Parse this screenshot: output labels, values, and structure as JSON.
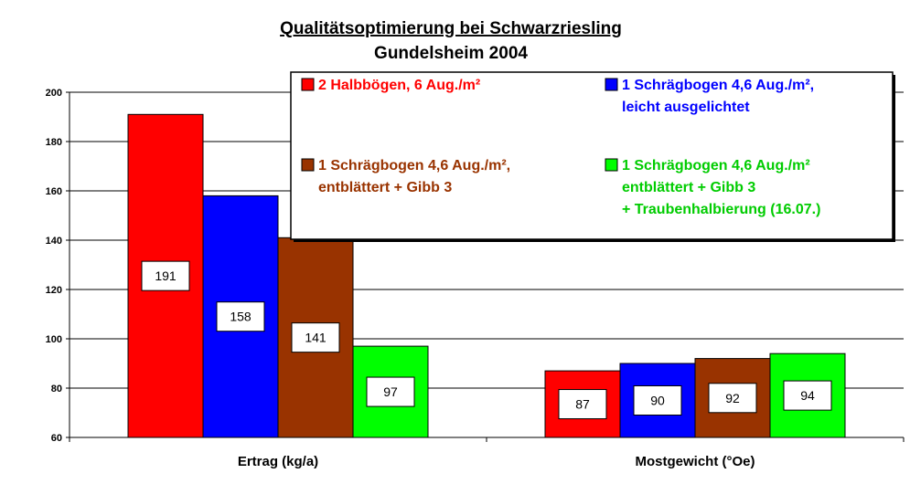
{
  "chart_data": {
    "type": "bar",
    "title": "Qualitätsoptimierung bei Schwarzriesling",
    "subtitle": "Gundelsheim 2004",
    "categories": [
      "Ertrag (kg/a)",
      "Mostgewicht (°Oe)"
    ],
    "ylim": [
      60,
      200
    ],
    "yticks": [
      60,
      80,
      100,
      120,
      140,
      160,
      180,
      200
    ],
    "grid": true,
    "legend_position": "top-right",
    "series": [
      {
        "name": "2 Halbbögen, 6 Aug./m²",
        "legend_lines": [
          "2 Halbbögen, 6 Aug./m²"
        ],
        "color": "#ff0000",
        "values": [
          191,
          87
        ]
      },
      {
        "name": "1 Schrägbogen 4,6 Aug./m², leicht ausgelichtet",
        "legend_lines": [
          "1 Schrägbogen 4,6 Aug./m²,",
          "leicht ausgelichtet"
        ],
        "color": "#0000ff",
        "values": [
          158,
          90
        ]
      },
      {
        "name": "1 Schrägbogen 4,6 Aug./m², entblättert + Gibb 3",
        "legend_lines": [
          "1 Schrägbogen 4,6 Aug./m²,",
          "entblättert + Gibb 3"
        ],
        "color": "#993300",
        "values": [
          141,
          92
        ]
      },
      {
        "name": "1 Schrägbogen 4,6 Aug./m² entblättert + Gibb 3 + Traubenhalbierung (16.07.)",
        "legend_lines": [
          "1 Schrägbogen 4,6 Aug./m²",
          "entblättert + Gibb 3",
          "+ Traubenhalbierung (16.07.)"
        ],
        "color": "#00ff00",
        "legend_text_color": "#00cc00",
        "values": [
          97,
          94
        ]
      }
    ],
    "legend_text_colors": [
      "#ff0000",
      "#0000ff",
      "#993300",
      "#00cc00"
    ]
  }
}
